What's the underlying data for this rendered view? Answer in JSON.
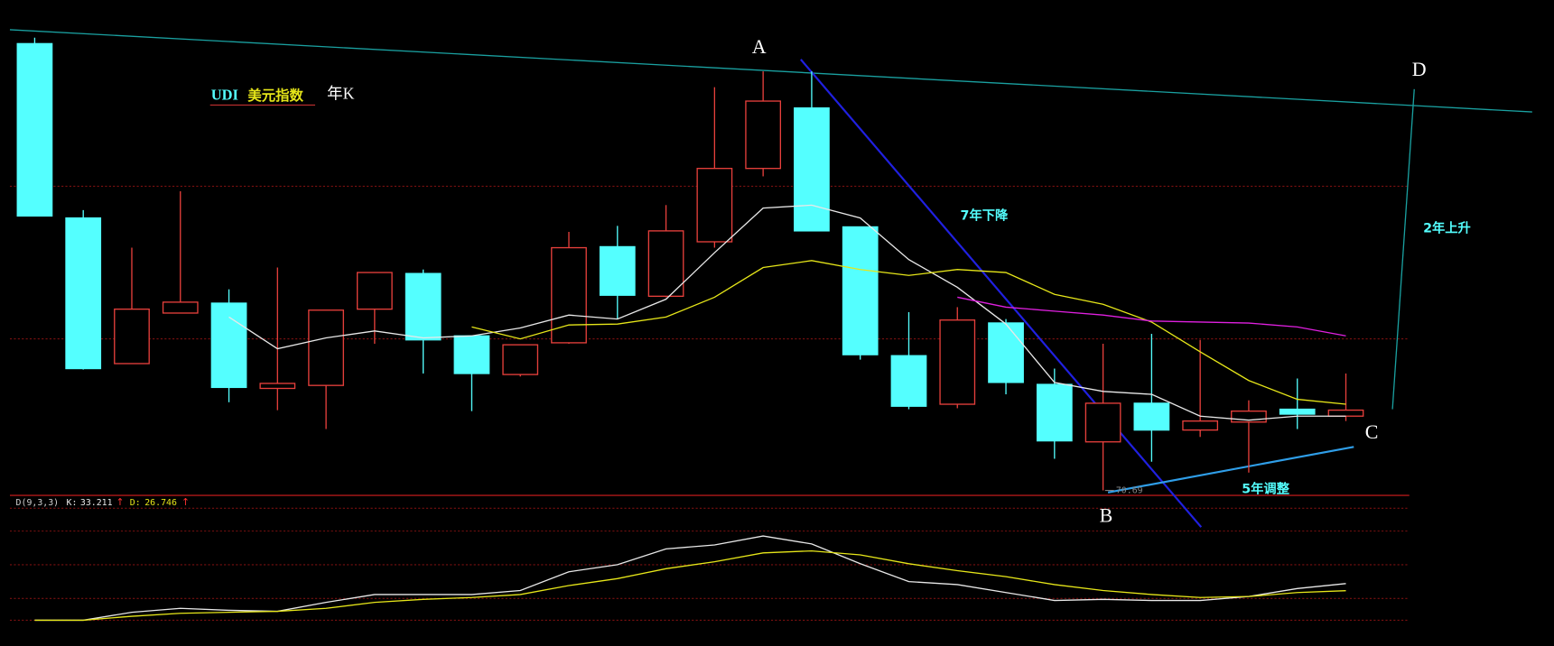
{
  "chart_data": [
    {
      "type": "candlestick",
      "title": "UDI",
      "subtitle": "美元指数",
      "period": "年K",
      "up_color": "#e8403c",
      "down_color": "#54ffff",
      "open": [
        124.35,
        103.41,
        85.92,
        91.99,
        93.18,
        82.94,
        83.3,
        92.46,
        96.74,
        89.25,
        84.61,
        88.42,
        99.96,
        94.01,
        100.55,
        109.36,
        116.62,
        102.34,
        86.87,
        81.04,
        90.8,
        83.42,
        76.52,
        81.16,
        77.94,
        78.9,
        80.44,
        79.61
      ],
      "high": [
        125.07,
        104.36,
        99.84,
        106.62,
        94.84,
        97.46,
        92.34,
        96.86,
        97.22,
        89.25,
        88.18,
        101.74,
        102.46,
        104.96,
        119.12,
        121.02,
        121.02,
        102.34,
        92.1,
        92.7,
        91.27,
        85.32,
        88.3,
        89.49,
        88.77,
        81.51,
        84.13,
        84.73
      ],
      "low": [
        103.6,
        85.2,
        85.92,
        91.99,
        81.28,
        80.33,
        78.06,
        88.3,
        84.73,
        80.21,
        84.37,
        88.3,
        91.27,
        93.89,
        99.84,
        108.41,
        101.86,
        86.39,
        80.44,
        80.56,
        82.23,
        74.49,
        70.69,
        74.14,
        77.11,
        72.83,
        78.06,
        79.02
      ],
      "close": [
        103.65,
        85.32,
        92.46,
        93.3,
        83.06,
        83.54,
        92.34,
        96.86,
        88.77,
        84.73,
        88.18,
        99.84,
        94.13,
        101.86,
        109.36,
        117.45,
        101.86,
        86.99,
        80.8,
        91.15,
        83.66,
        76.64,
        81.16,
        77.94,
        79.02,
        80.21,
        79.85,
        80.33
      ],
      "series": [
        {
          "color": "#e8e8e8",
          "values": [
            null,
            null,
            null,
            null,
            91.51,
            87.7,
            89.01,
            89.84,
            89.01,
            89.25,
            90.2,
            91.75,
            91.27,
            93.65,
            99.24,
            104.6,
            104.95,
            103.41,
            98.41,
            95.08,
            90.67,
            83.65,
            82.58,
            82.23,
            79.61,
            79.13,
            79.61,
            79.61
          ]
        },
        {
          "color": "#e6e619",
          "values": [
            null,
            null,
            null,
            null,
            null,
            null,
            null,
            null,
            null,
            90.32,
            88.89,
            90.56,
            90.67,
            91.51,
            93.89,
            97.46,
            98.29,
            97.22,
            96.51,
            97.22,
            96.86,
            94.24,
            93.05,
            90.91,
            87.34,
            83.89,
            81.63,
            81.04
          ]
        },
        {
          "color": "#e020e0",
          "values": [
            null,
            null,
            null,
            null,
            null,
            null,
            null,
            null,
            null,
            null,
            null,
            null,
            null,
            null,
            null,
            null,
            null,
            null,
            null,
            93.89,
            92.7,
            92.22,
            91.75,
            91.03,
            90.91,
            90.79,
            90.32,
            89.25
          ]
        }
      ],
      "ylim": [
        70.09,
        126.02
      ],
      "annotations": [
        "A",
        "B",
        "C",
        "D",
        "7年下降",
        "5年调整",
        "2年上升"
      ]
    },
    {
      "type": "kd",
      "label": "D(9,3,3)",
      "series": [
        {
          "name": "K:",
          "color": "#e8e8e8",
          "trend": "↑",
          "values": [
            0,
            0,
            7.2,
            10.8,
            9.0,
            8.1,
            16.2,
            23.3,
            23.3,
            23.3,
            26.9,
            43.9,
            50.3,
            64.6,
            68.2,
            76.3,
            69.1,
            51.2,
            35.0,
            32.3,
            25.1,
            17.9,
            18.9,
            17.9,
            17.9,
            21.5,
            28.7,
            33.211
          ]
        },
        {
          "name": "D:",
          "color": "#e6e619",
          "trend": "↑",
          "values": [
            0,
            0,
            3.6,
            6.3,
            7.2,
            8.1,
            10.8,
            16.2,
            18.9,
            20.6,
            23.3,
            31.4,
            37.7,
            46.7,
            53.0,
            61.0,
            62.8,
            59.2,
            51.2,
            44.9,
            39.5,
            32.3,
            26.9,
            23.3,
            20.6,
            21.5,
            25.1,
            26.746
          ]
        }
      ],
      "ylim": [
        0,
        104.1
      ]
    }
  ]
}
